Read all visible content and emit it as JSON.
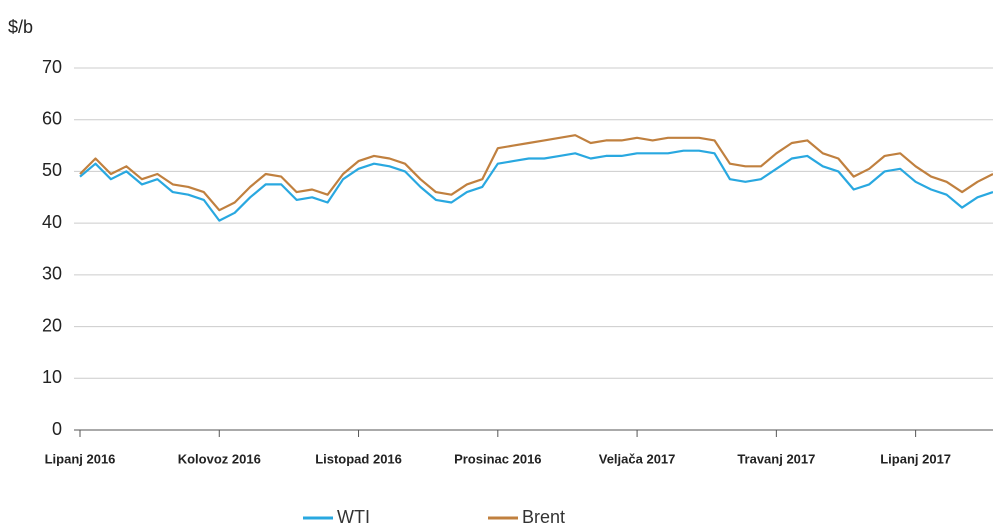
{
  "chart_data": {
    "type": "line",
    "y_label": "$/b",
    "categories": [
      "Lipanj 2016",
      null,
      null,
      null,
      null,
      null,
      null,
      null,
      null,
      "Kolovoz 2016",
      null,
      null,
      null,
      null,
      null,
      null,
      null,
      null,
      "Listopad 2016",
      null,
      null,
      null,
      null,
      null,
      null,
      null,
      null,
      "Prosinac 2016",
      null,
      null,
      null,
      null,
      null,
      null,
      null,
      null,
      "Veljača 2017",
      null,
      null,
      null,
      null,
      null,
      null,
      null,
      null,
      "Travanj 2017",
      null,
      null,
      null,
      null,
      null,
      null,
      null,
      null,
      "Lipanj 2017",
      null,
      null,
      null,
      null,
      null
    ],
    "series": [
      {
        "name": "WTI",
        "color": "#29a8e0",
        "values": [
          49,
          51.5,
          48.5,
          50,
          47.5,
          48.5,
          46,
          45.5,
          44.5,
          40.5,
          42,
          45,
          47.5,
          47.5,
          44.5,
          45,
          44,
          48.5,
          50.5,
          51.5,
          51,
          50,
          47,
          44.5,
          44,
          46,
          47,
          51.5,
          52,
          52.5,
          52.5,
          53,
          53.5,
          52.5,
          53,
          53,
          53.5,
          53.5,
          53.5,
          54,
          54,
          53.5,
          48.5,
          48,
          48.5,
          50.5,
          52.5,
          53,
          51,
          50,
          46.5,
          47.5,
          50,
          50.5,
          48,
          46.5,
          45.5,
          43,
          45,
          46
        ]
      },
      {
        "name": "Brent",
        "color": "#c0803f",
        "values": [
          49.5,
          52.5,
          49.5,
          51,
          48.5,
          49.5,
          47.5,
          47,
          46,
          42.5,
          44,
          47,
          49.5,
          49,
          46,
          46.5,
          45.5,
          49.5,
          52,
          53,
          52.5,
          51.5,
          48.5,
          46,
          45.5,
          47.5,
          48.5,
          54.5,
          55,
          55.5,
          56,
          56.5,
          57,
          55.5,
          56,
          56,
          56.5,
          56,
          56.5,
          56.5,
          56.5,
          56,
          51.5,
          51,
          51,
          53.5,
          55.5,
          56,
          53.5,
          52.5,
          49,
          50.5,
          53,
          53.5,
          51,
          49,
          48,
          46,
          48,
          49.5
        ]
      }
    ],
    "ylim": [
      0,
      70
    ],
    "yticks": [
      0,
      10,
      20,
      30,
      40,
      50,
      60,
      70
    ],
    "grid": true
  }
}
